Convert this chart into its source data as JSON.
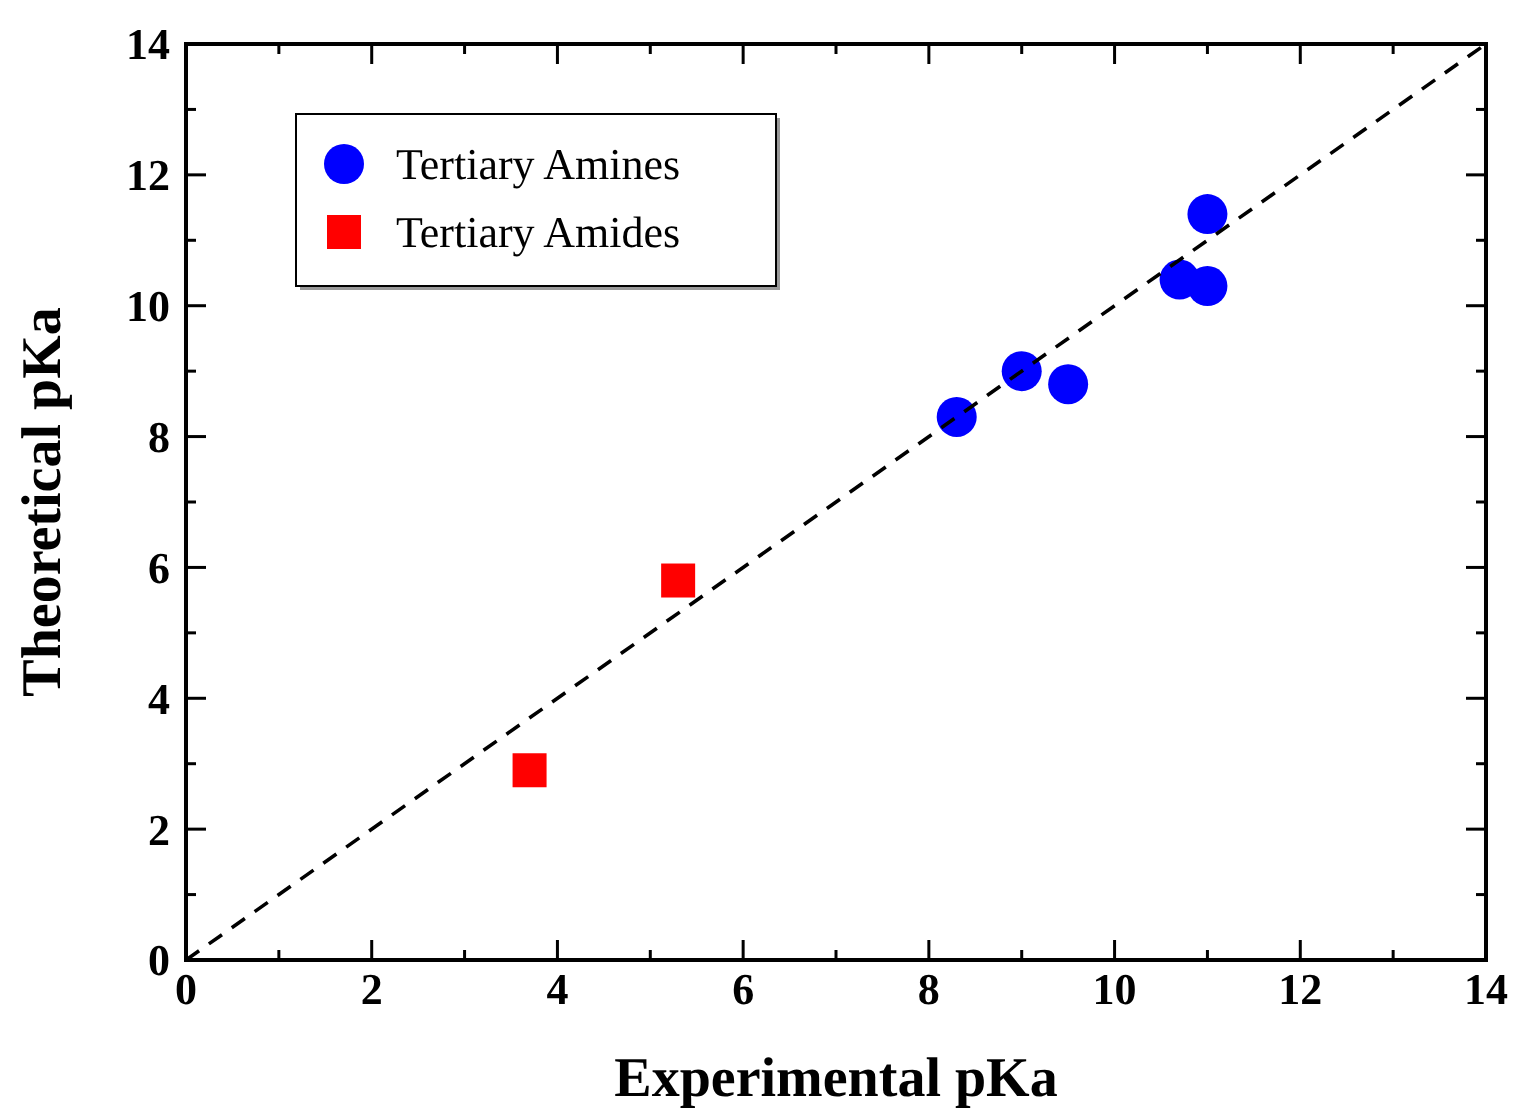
{
  "chart_data": {
    "type": "scatter",
    "xlabel": "Experimental pKa",
    "ylabel": "Theoretical pKa",
    "xlim": [
      0,
      14
    ],
    "ylim": [
      0,
      14
    ],
    "xticks": [
      0,
      {
        "value": 1,
        "label": null
      },
      2,
      {
        "value": 3,
        "label": null
      },
      4,
      {
        "value": 5,
        "label": null
      },
      6,
      {
        "value": 7,
        "label": null
      },
      8,
      {
        "value": 9,
        "label": null
      },
      10,
      {
        "value": 11,
        "label": null
      },
      12,
      {
        "value": 13,
        "label": null
      },
      14
    ],
    "yticks": [
      0,
      {
        "value": 1,
        "label": null
      },
      2,
      {
        "value": 3,
        "label": null
      },
      4,
      {
        "value": 5,
        "label": null
      },
      6,
      {
        "value": 7,
        "label": null
      },
      8,
      {
        "value": 9,
        "label": null
      },
      10,
      {
        "value": 11,
        "label": null
      },
      12,
      {
        "value": 13,
        "label": null
      },
      14
    ],
    "grid": false,
    "legend": "top left",
    "series": [
      {
        "name": "Tertiary Amines",
        "color": "#0000ff",
        "marker": "circle",
        "x": [
          8.3,
          9.0,
          9.5,
          10.7,
          11.0,
          11.0
        ],
        "values": [
          8.3,
          9.0,
          8.8,
          10.4,
          11.4,
          10.3
        ]
      },
      {
        "name": "Tertiary Amides",
        "color": "#ff0000",
        "marker": "square",
        "x": [
          3.7,
          5.3
        ],
        "values": [
          2.9,
          5.8
        ]
      },
      {
        "type": "line",
        "color": "#000000",
        "line_style": "dashed",
        "marker": "none",
        "x": [
          0,
          14
        ],
        "values": [
          0,
          14
        ]
      }
    ]
  }
}
